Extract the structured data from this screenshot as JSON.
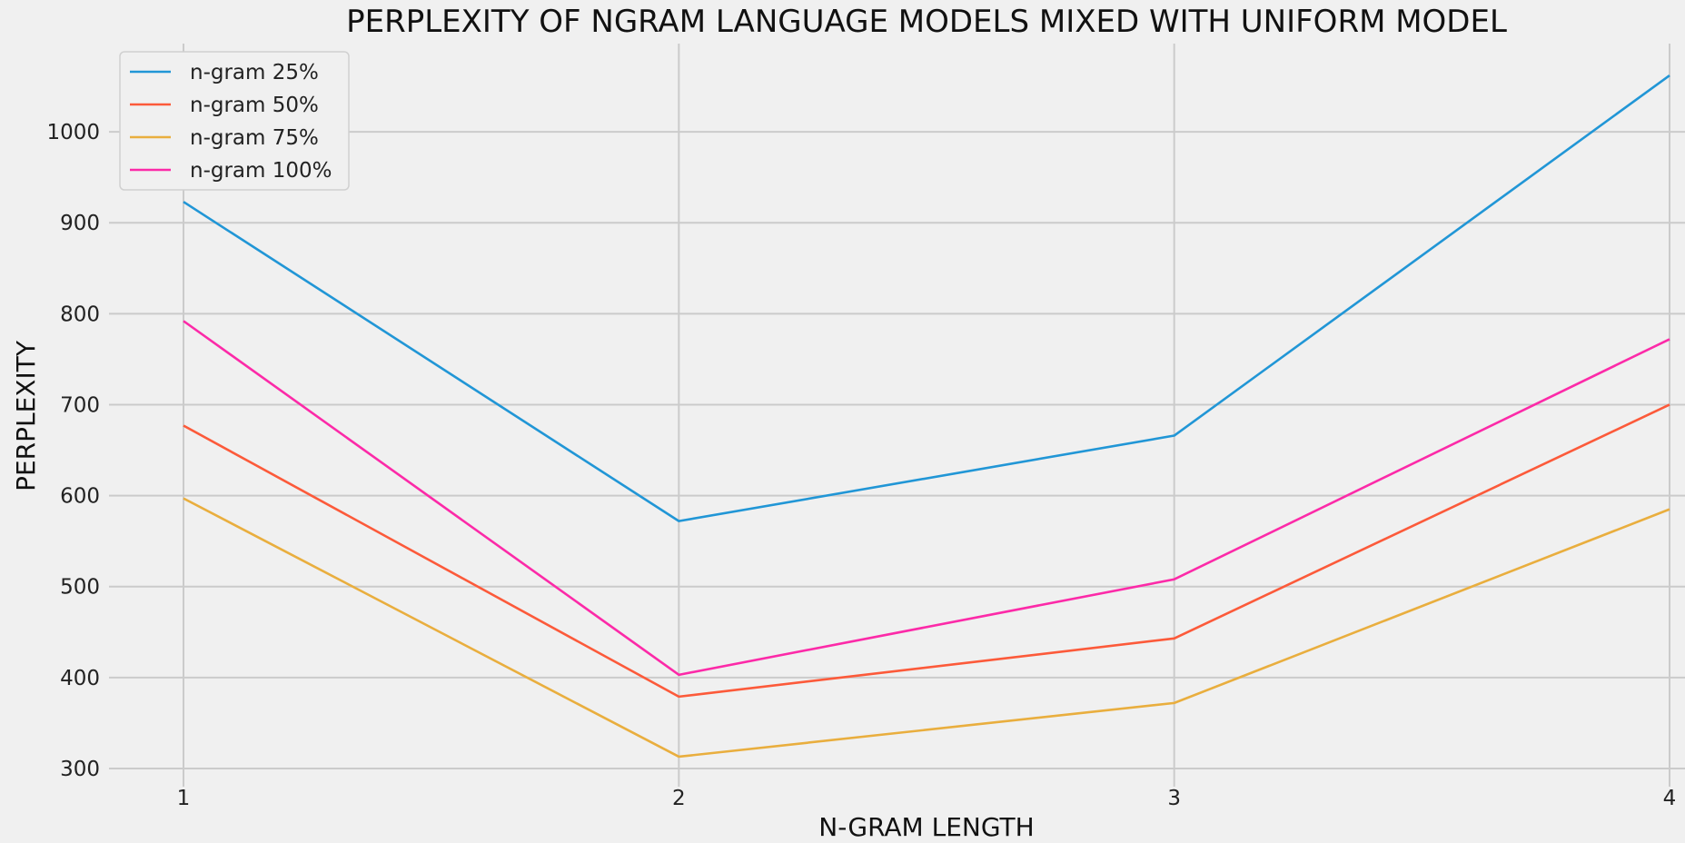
{
  "chart_data": {
    "type": "line",
    "title": "PERPLEXITY OF NGRAM LANGUAGE MODELS MIXED WITH UNIFORM MODEL",
    "xlabel": "N-GRAM LENGTH",
    "ylabel": "PERPLEXITY",
    "x": [
      1,
      2,
      3,
      4
    ],
    "x_ticks": [
      "1",
      "2",
      "3",
      "4"
    ],
    "y_ticks": [
      "300",
      "400",
      "500",
      "600",
      "700",
      "800",
      "900",
      "1000"
    ],
    "xlim": [
      1,
      4
    ],
    "ylim": [
      280,
      1100
    ],
    "grid": true,
    "legend_position": "top-left",
    "series": [
      {
        "name": "n-gram 25%",
        "color": "#2196d6",
        "values": [
          923,
          572,
          666,
          1062
        ]
      },
      {
        "name": "n-gram 50%",
        "color": "#fc5a3a",
        "values": [
          677,
          379,
          443,
          700
        ]
      },
      {
        "name": "n-gram 75%",
        "color": "#e9ae3e",
        "values": [
          597,
          313,
          372,
          585
        ]
      },
      {
        "name": "n-gram 100%",
        "color": "#fc2aa8",
        "values": [
          792,
          403,
          508,
          772
        ]
      }
    ]
  }
}
